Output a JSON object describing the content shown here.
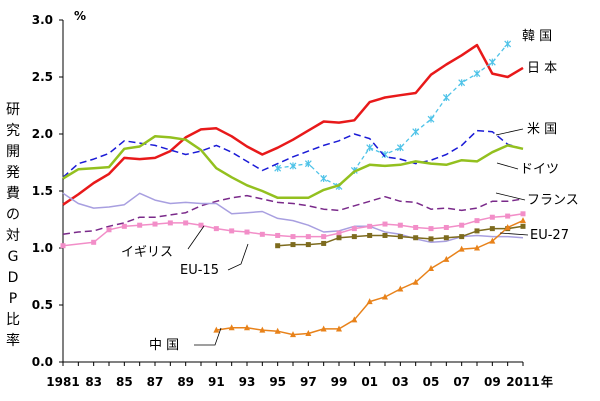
{
  "chart_data": {
    "type": "line",
    "unit_label": "%",
    "ylabel": "研究開発費の対GDP比率",
    "xlabel_suffix": "年",
    "xlim": [
      1981,
      2011
    ],
    "ylim": [
      0,
      3.0
    ],
    "yticks": [
      "0.0",
      "0.5",
      "1.0",
      "1.5",
      "2.0",
      "2.5",
      "3.0"
    ],
    "xtick_labels": [
      "1981",
      "83",
      "85",
      "87",
      "89",
      "91",
      "93",
      "95",
      "97",
      "99",
      "01",
      "03",
      "05",
      "07",
      "09",
      "2011"
    ],
    "grid": false,
    "series": [
      {
        "name": "日 本",
        "color": "#e8191a",
        "style": "solid-thick",
        "points": [
          [
            1981,
            1.38
          ],
          [
            1982,
            1.47
          ],
          [
            1983,
            1.57
          ],
          [
            1984,
            1.65
          ],
          [
            1985,
            1.79
          ],
          [
            1986,
            1.78
          ],
          [
            1987,
            1.79
          ],
          [
            1988,
            1.85
          ],
          [
            1989,
            1.97
          ],
          [
            1990,
            2.04
          ],
          [
            1991,
            2.05
          ],
          [
            1992,
            1.98
          ],
          [
            1993,
            1.89
          ],
          [
            1994,
            1.82
          ],
          [
            1995,
            1.88
          ],
          [
            1996,
            1.95
          ],
          [
            1997,
            2.03
          ],
          [
            1998,
            2.11
          ],
          [
            1999,
            2.1
          ],
          [
            2000,
            2.12
          ],
          [
            2001,
            2.28
          ],
          [
            2002,
            2.32
          ],
          [
            2003,
            2.34
          ],
          [
            2004,
            2.36
          ],
          [
            2005,
            2.52
          ],
          [
            2006,
            2.61
          ],
          [
            2007,
            2.69
          ],
          [
            2008,
            2.78
          ],
          [
            2009,
            2.53
          ],
          [
            2010,
            2.5
          ],
          [
            2011,
            2.58
          ]
        ]
      },
      {
        "name": "韓 国",
        "color": "#4fc3e8",
        "style": "dashed-marker-x",
        "points": [
          [
            1995,
            1.7
          ],
          [
            1996,
            1.72
          ],
          [
            1997,
            1.74
          ],
          [
            1998,
            1.61
          ],
          [
            1999,
            1.54
          ],
          [
            2000,
            1.68
          ],
          [
            2001,
            1.88
          ],
          [
            2002,
            1.82
          ],
          [
            2003,
            1.88
          ],
          [
            2004,
            2.02
          ],
          [
            2005,
            2.13
          ],
          [
            2006,
            2.32
          ],
          [
            2007,
            2.45
          ],
          [
            2008,
            2.53
          ],
          [
            2009,
            2.63
          ],
          [
            2010,
            2.79
          ]
        ]
      },
      {
        "name": "米 国",
        "color": "#1a1ad6",
        "style": "dashed",
        "points": [
          [
            1981,
            1.62
          ],
          [
            1982,
            1.74
          ],
          [
            1983,
            1.78
          ],
          [
            1984,
            1.83
          ],
          [
            1985,
            1.94
          ],
          [
            1986,
            1.92
          ],
          [
            1987,
            1.9
          ],
          [
            1988,
            1.86
          ],
          [
            1989,
            1.82
          ],
          [
            1990,
            1.85
          ],
          [
            1991,
            1.9
          ],
          [
            1992,
            1.84
          ],
          [
            1993,
            1.76
          ],
          [
            1994,
            1.68
          ],
          [
            1995,
            1.74
          ],
          [
            1996,
            1.8
          ],
          [
            1997,
            1.85
          ],
          [
            1998,
            1.9
          ],
          [
            1999,
            1.94
          ],
          [
            2000,
            2.0
          ],
          [
            2001,
            1.96
          ],
          [
            2002,
            1.8
          ],
          [
            2003,
            1.78
          ],
          [
            2004,
            1.74
          ],
          [
            2005,
            1.77
          ],
          [
            2006,
            1.82
          ],
          [
            2007,
            1.9
          ],
          [
            2008,
            2.03
          ],
          [
            2009,
            2.02
          ],
          [
            2010,
            1.91
          ],
          [
            2011,
            1.87
          ]
        ]
      },
      {
        "name": "ドイツ",
        "color": "#93c01f",
        "style": "solid-thick",
        "points": [
          [
            1981,
            1.61
          ],
          [
            1982,
            1.69
          ],
          [
            1983,
            1.7
          ],
          [
            1984,
            1.71
          ],
          [
            1985,
            1.87
          ],
          [
            1986,
            1.89
          ],
          [
            1987,
            1.98
          ],
          [
            1988,
            1.97
          ],
          [
            1989,
            1.95
          ],
          [
            1990,
            1.86
          ],
          [
            1991,
            1.7
          ],
          [
            1992,
            1.62
          ],
          [
            1993,
            1.55
          ],
          [
            1994,
            1.5
          ],
          [
            1995,
            1.44
          ],
          [
            1996,
            1.44
          ],
          [
            1997,
            1.44
          ],
          [
            1998,
            1.51
          ],
          [
            1999,
            1.55
          ],
          [
            2000,
            1.67
          ],
          [
            2001,
            1.73
          ],
          [
            2002,
            1.72
          ],
          [
            2003,
            1.73
          ],
          [
            2004,
            1.76
          ],
          [
            2005,
            1.74
          ],
          [
            2006,
            1.73
          ],
          [
            2007,
            1.77
          ],
          [
            2008,
            1.76
          ],
          [
            2009,
            1.84
          ],
          [
            2010,
            1.9
          ],
          [
            2011,
            1.87
          ]
        ]
      },
      {
        "name": "フランス",
        "color": "#7a2a8a",
        "style": "dashed",
        "points": [
          [
            1981,
            1.12
          ],
          [
            1982,
            1.14
          ],
          [
            1983,
            1.15
          ],
          [
            1984,
            1.19
          ],
          [
            1985,
            1.22
          ],
          [
            1986,
            1.27
          ],
          [
            1987,
            1.27
          ],
          [
            1988,
            1.29
          ],
          [
            1989,
            1.31
          ],
          [
            1990,
            1.37
          ],
          [
            1991,
            1.41
          ],
          [
            1992,
            1.44
          ],
          [
            1993,
            1.46
          ],
          [
            1994,
            1.43
          ],
          [
            1995,
            1.4
          ],
          [
            1996,
            1.39
          ],
          [
            1997,
            1.37
          ],
          [
            1998,
            1.34
          ],
          [
            1999,
            1.33
          ],
          [
            2000,
            1.37
          ],
          [
            2001,
            1.41
          ],
          [
            2002,
            1.45
          ],
          [
            2003,
            1.41
          ],
          [
            2004,
            1.4
          ],
          [
            2005,
            1.34
          ],
          [
            2006,
            1.35
          ],
          [
            2007,
            1.33
          ],
          [
            2008,
            1.35
          ],
          [
            2009,
            1.41
          ],
          [
            2010,
            1.41
          ],
          [
            2011,
            1.43
          ]
        ]
      },
      {
        "name": "イギリス",
        "color": "#a89fe0",
        "style": "solid",
        "points": [
          [
            1981,
            1.48
          ],
          [
            1982,
            1.39
          ],
          [
            1983,
            1.35
          ],
          [
            1984,
            1.36
          ],
          [
            1985,
            1.38
          ],
          [
            1986,
            1.48
          ],
          [
            1987,
            1.42
          ],
          [
            1988,
            1.39
          ],
          [
            1989,
            1.4
          ],
          [
            1990,
            1.39
          ],
          [
            1991,
            1.39
          ],
          [
            1992,
            1.3
          ],
          [
            1993,
            1.31
          ],
          [
            1994,
            1.32
          ],
          [
            1995,
            1.26
          ],
          [
            1996,
            1.24
          ],
          [
            1997,
            1.2
          ],
          [
            1998,
            1.14
          ],
          [
            1999,
            1.15
          ],
          [
            2000,
            1.19
          ],
          [
            2001,
            1.19
          ],
          [
            2002,
            1.14
          ],
          [
            2003,
            1.12
          ],
          [
            2004,
            1.08
          ],
          [
            2005,
            1.05
          ],
          [
            2006,
            1.06
          ],
          [
            2007,
            1.1
          ],
          [
            2008,
            1.11
          ],
          [
            2009,
            1.1
          ],
          [
            2010,
            1.1
          ],
          [
            2011,
            1.09
          ]
        ]
      },
      {
        "name": "EU-15",
        "color": "#f28ec8",
        "style": "solid-marker-square",
        "points": [
          [
            1981,
            1.02
          ],
          [
            1983,
            1.05
          ],
          [
            1984,
            1.16
          ],
          [
            1985,
            1.19
          ],
          [
            1986,
            1.2
          ],
          [
            1987,
            1.21
          ],
          [
            1988,
            1.22
          ],
          [
            1989,
            1.22
          ],
          [
            1990,
            1.2
          ],
          [
            1991,
            1.17
          ],
          [
            1992,
            1.15
          ],
          [
            1993,
            1.14
          ],
          [
            1994,
            1.12
          ],
          [
            1995,
            1.11
          ],
          [
            1996,
            1.1
          ],
          [
            1997,
            1.1
          ],
          [
            1998,
            1.1
          ],
          [
            1999,
            1.13
          ],
          [
            2000,
            1.17
          ],
          [
            2001,
            1.19
          ],
          [
            2002,
            1.21
          ],
          [
            2003,
            1.2
          ],
          [
            2004,
            1.18
          ],
          [
            2005,
            1.17
          ],
          [
            2006,
            1.18
          ],
          [
            2007,
            1.2
          ],
          [
            2008,
            1.24
          ],
          [
            2009,
            1.27
          ],
          [
            2010,
            1.28
          ],
          [
            2011,
            1.3
          ]
        ]
      },
      {
        "name": "EU-27",
        "color": "#7d6b1e",
        "style": "solid-marker-square",
        "points": [
          [
            1995,
            1.02
          ],
          [
            1996,
            1.03
          ],
          [
            1997,
            1.03
          ],
          [
            1998,
            1.04
          ],
          [
            1999,
            1.09
          ],
          [
            2000,
            1.1
          ],
          [
            2001,
            1.11
          ],
          [
            2002,
            1.11
          ],
          [
            2003,
            1.1
          ],
          [
            2004,
            1.09
          ],
          [
            2005,
            1.08
          ],
          [
            2006,
            1.09
          ],
          [
            2007,
            1.1
          ],
          [
            2008,
            1.15
          ],
          [
            2009,
            1.17
          ],
          [
            2010,
            1.17
          ],
          [
            2011,
            1.19
          ]
        ]
      },
      {
        "name": "中 国",
        "color": "#e8821a",
        "style": "solid-marker-triangle",
        "points": [
          [
            1991,
            0.28
          ],
          [
            1992,
            0.3
          ],
          [
            1993,
            0.3
          ],
          [
            1994,
            0.28
          ],
          [
            1995,
            0.27
          ],
          [
            1996,
            0.24
          ],
          [
            1997,
            0.25
          ],
          [
            1998,
            0.29
          ],
          [
            1999,
            0.29
          ],
          [
            2000,
            0.37
          ],
          [
            2001,
            0.53
          ],
          [
            2002,
            0.57
          ],
          [
            2003,
            0.64
          ],
          [
            2004,
            0.7
          ],
          [
            2005,
            0.82
          ],
          [
            2006,
            0.9
          ],
          [
            2007,
            0.99
          ],
          [
            2008,
            1.0
          ],
          [
            2009,
            1.06
          ],
          [
            2010,
            1.18
          ],
          [
            2011,
            1.24
          ]
        ]
      }
    ]
  }
}
